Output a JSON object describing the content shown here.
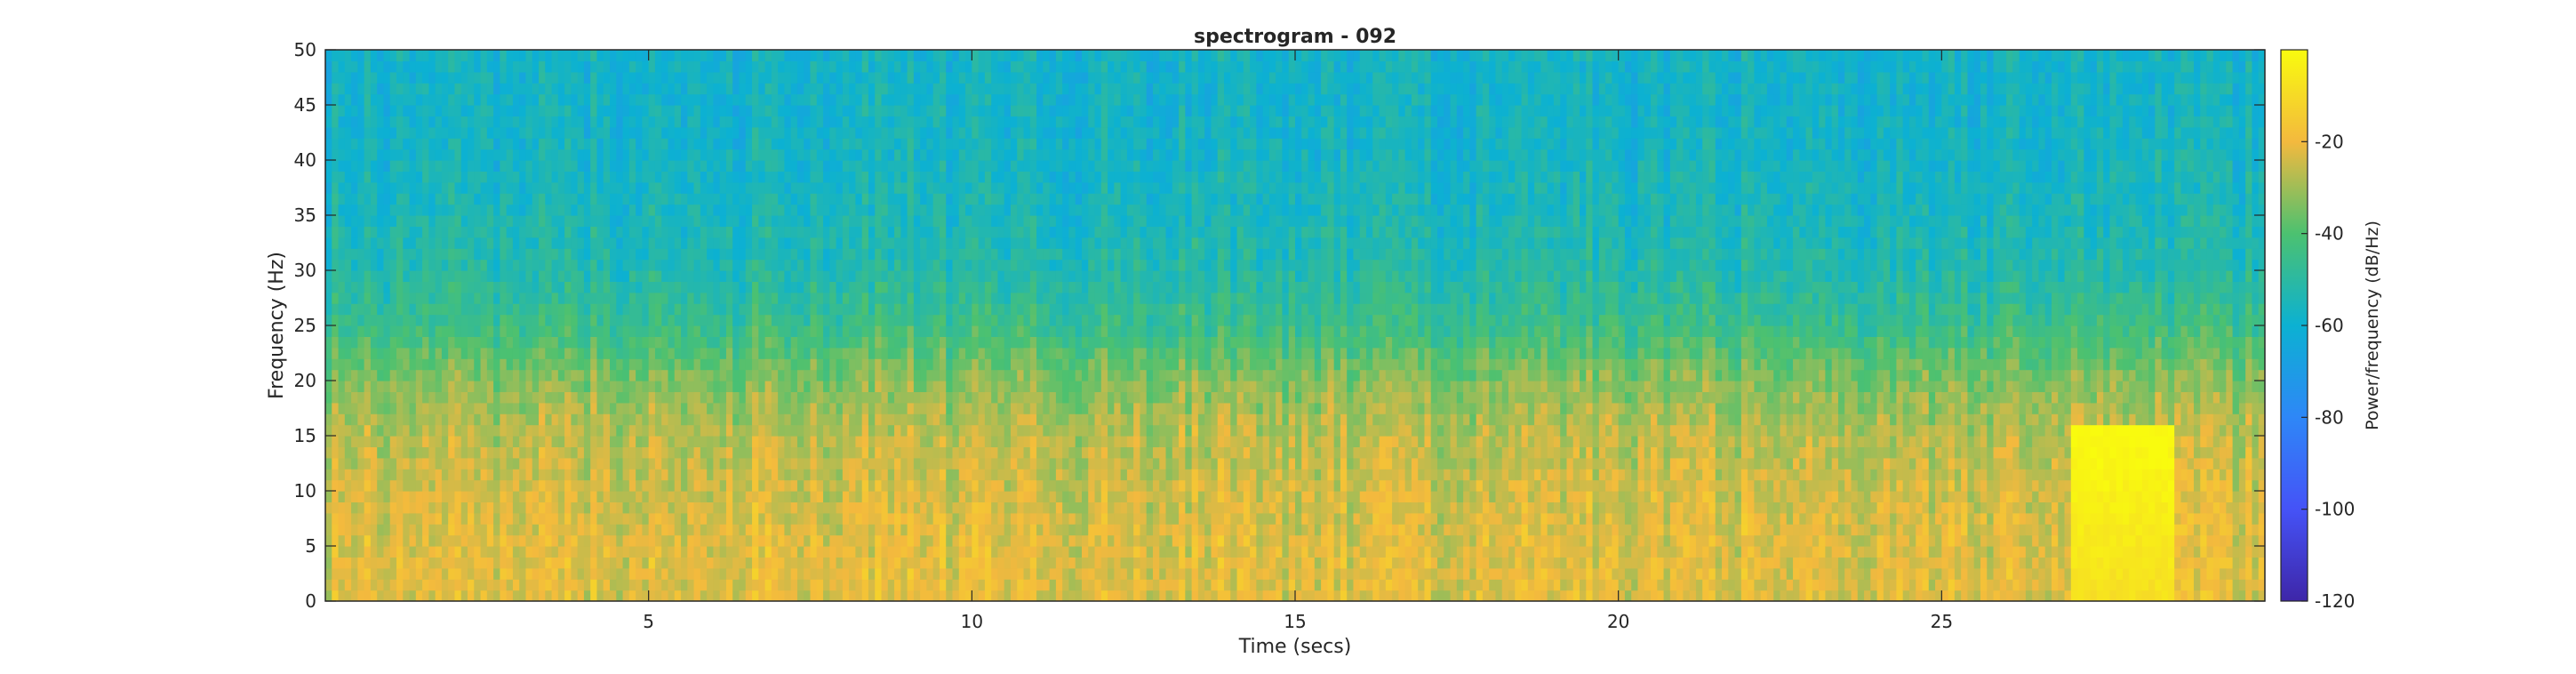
{
  "chart_data": {
    "type": "heatmap",
    "title": "spectrogram - 092",
    "xlabel": "Time (secs)",
    "ylabel": "Frequency (Hz)",
    "xlim": [
      0,
      30
    ],
    "ylim": [
      0,
      50
    ],
    "x_ticks": [
      5,
      10,
      15,
      20,
      25
    ],
    "y_ticks": [
      0,
      5,
      10,
      15,
      20,
      25,
      30,
      35,
      40,
      45,
      50
    ],
    "colorbar": {
      "label": "Power/frequency (dB/Hz)",
      "range": [
        -120,
        0
      ],
      "ticks": [
        -20,
        -40,
        -60,
        -80,
        -100,
        -120
      ],
      "colormap": "parula"
    },
    "power_profile_db": [
      {
        "freq_hz": 0,
        "power_db": -22
      },
      {
        "freq_hz": 5,
        "power_db": -22
      },
      {
        "freq_hz": 10,
        "power_db": -24
      },
      {
        "freq_hz": 15,
        "power_db": -27
      },
      {
        "freq_hz": 20,
        "power_db": -33
      },
      {
        "freq_hz": 25,
        "power_db": -45
      },
      {
        "freq_hz": 30,
        "power_db": -52
      },
      {
        "freq_hz": 35,
        "power_db": -55
      },
      {
        "freq_hz": 40,
        "power_db": -57
      },
      {
        "freq_hz": 45,
        "power_db": -58
      },
      {
        "freq_hz": 50,
        "power_db": -58
      }
    ],
    "hotspot": {
      "time_s": [
        27,
        28.5
      ],
      "freq_hz": [
        0,
        15
      ],
      "power_db": -8
    },
    "grid": false
  }
}
